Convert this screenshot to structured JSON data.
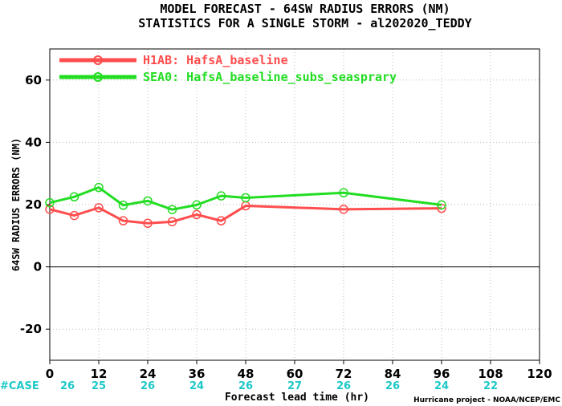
{
  "chart_data": {
    "type": "line",
    "title": "MODEL FORECAST - 64SW RADIUS ERRORS (NM)",
    "subtitle": "STATISTICS FOR A SINGLE STORM - al202020_TEDDY",
    "xlabel": "Forecast lead time (hr)",
    "ylabel": "64SW RADIUS ERRORS (NM)",
    "xlim": [
      0,
      120
    ],
    "ylim": [
      -30,
      70
    ],
    "xticks": [
      0,
      12,
      24,
      36,
      48,
      60,
      72,
      84,
      96,
      108,
      120
    ],
    "yticks": [
      -20,
      0,
      20,
      40,
      60
    ],
    "grid": true,
    "zero_line": true,
    "legend_position": "top-left",
    "series": [
      {
        "name": "H1AB: HafsA_baseline",
        "color": "#ff4d4d",
        "x": [
          0,
          6,
          12,
          18,
          24,
          30,
          36,
          42,
          48,
          72,
          96
        ],
        "y": [
          18.5,
          16.5,
          19,
          14.8,
          14,
          14.5,
          16.8,
          14.8,
          19.6,
          18.5,
          18.8
        ]
      },
      {
        "name": "SEA0: HafsA_baseline_subs_seasprary",
        "color": "#22dd22",
        "x": [
          0,
          6,
          12,
          18,
          24,
          30,
          36,
          42,
          48,
          72,
          96
        ],
        "y": [
          20.6,
          22.5,
          25.5,
          19.8,
          21.2,
          18.4,
          19.9,
          22.8,
          22.2,
          23.8,
          19.9
        ]
      }
    ],
    "cases": {
      "label": "#CASE",
      "color": "#1ec8c8",
      "x": [
        0,
        12,
        24,
        36,
        48,
        60,
        72,
        84,
        96,
        108
      ],
      "values": [
        "26",
        "25",
        "26",
        "24",
        "26",
        "27",
        "26",
        "26",
        "24",
        "22"
      ]
    },
    "credit": "Hurricane project - NOAA/NCEP/EMC"
  }
}
